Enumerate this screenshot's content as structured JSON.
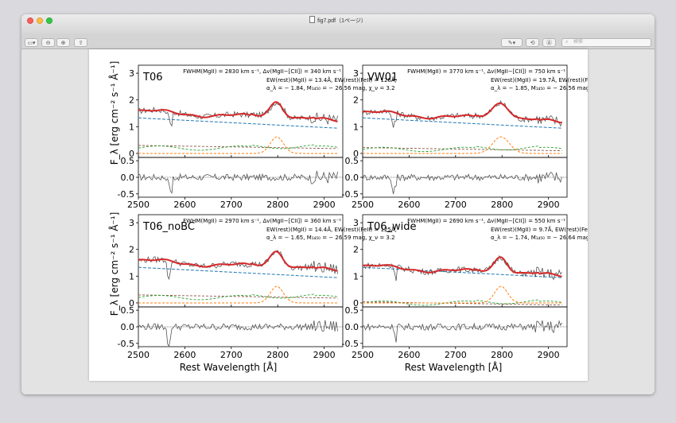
{
  "window": {
    "title": "fig7.pdf（1ページ）",
    "search_placeholder": "検索",
    "icons": [
      "sidebar-icon",
      "zoom-out-icon",
      "zoom-in-icon",
      "share-icon",
      "markup-pen-icon",
      "rotate-icon",
      "annotate-icon",
      "search-icon"
    ]
  },
  "figure": {
    "ylabel": "F_λ [erg cm⁻² s⁻¹ Å⁻¹]",
    "xlabel": "Rest Wavelength [Å]",
    "upper_yticks": [
      "0",
      "1",
      "2",
      "3"
    ],
    "resid_yticks": [
      "0.5",
      "0.0",
      "-0.5"
    ],
    "xticks": [
      "2500",
      "2600",
      "2700",
      "2800",
      "2900"
    ],
    "colors": {
      "data": "#555555",
      "model": "#d62728",
      "continuum": "#1f77b4",
      "mgii": "#ff7f0e",
      "feii": "#2ca02c",
      "balmer": "#8c564b"
    },
    "panels": [
      {
        "name": "T06",
        "line1": "FWHM(MgII) = 2830 km s⁻¹, Δv(MgII−[CII]) = 340 km s⁻¹",
        "line2": "EW(rest)(MgII) = 13.4Å, EW(rest)(FeII) = 126Å,",
        "line3": "α_λ = − 1.84, M₁₄₅₀ = − 26.56 mag, χ_ν = 3.2"
      },
      {
        "name": "VW01",
        "line1": "FWHM(MgII) = 3770 km s⁻¹, Δv(MgII−[CII]) = 750 km s⁻¹",
        "line2": "EW(rest)(MgII) = 19.7Å, EW(rest)(FeII) = 118Å,",
        "line3": "α_λ = − 1.85, M₁₄₅₀ = − 26.56 mag, χ_ν = 3.3"
      },
      {
        "name": "T06_noBC",
        "line1": "FWHM(MgII) = 2970 km s⁻¹, Δv(MgII−[CII]) = 360 km s⁻¹",
        "line2": "EW(rest)(MgII) = 14.4Å, EW(rest)(FeII) = 125Å,",
        "line3": "α_λ = − 1.65, M₁₄₅₀ = − 26.59 mag, χ_ν = 3.2"
      },
      {
        "name": "T06_wide",
        "line1": "FWHM(MgII) = 2690 km s⁻¹, Δv(MgII−[CII]) = 550 km s⁻¹",
        "line2": "EW(rest)(MgII) = 9.7Å, EW(rest)(FeII) = 15Å,",
        "line3": "α_λ = − 1.74, M₁₄₅₀ = − 26.64 mag, χ_ν = 4.0"
      }
    ]
  }
}
